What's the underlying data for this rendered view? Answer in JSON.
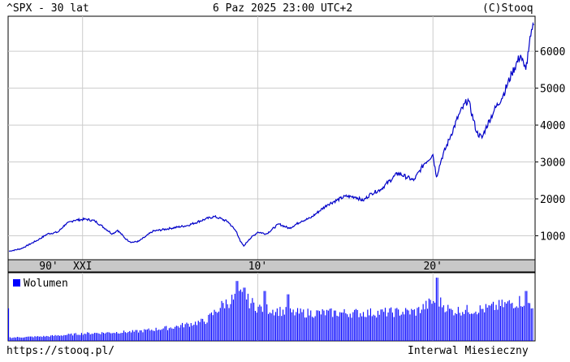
{
  "header": {
    "title": "^SPX - 30 lat",
    "datetime": "6 Paz 2025 23:00 UTC+2",
    "copyright": "(C)Stooq"
  },
  "footer": {
    "url": "https://stooq.pl/",
    "interval": "Interwal Miesieczny"
  },
  "colors": {
    "line": "#0000c8",
    "volume": "#0000ff",
    "grid": "#cccccc",
    "axis_band": "#c8c8c8"
  },
  "chart_data": [
    {
      "type": "line",
      "title": "^SPX - 30 lat",
      "series": [
        {
          "x": [
            1995.8,
            1996.5,
            1997.5,
            1998.0,
            1998.6,
            1999.0,
            1999.5,
            2000.2,
            2000.7,
            2001.0,
            2001.7,
            2002.0,
            2002.5,
            2002.8,
            2003.2,
            2003.6,
            2004.0,
            2005.0,
            2006.0,
            2007.0,
            2007.5,
            2007.8,
            2008.3,
            2008.8,
            2009.0,
            2009.2,
            2009.5,
            2010.0,
            2010.5,
            2011.2,
            2011.8,
            2012.5,
            2013.0,
            2014.0,
            2015.0,
            2015.6,
            2016.0,
            2016.5,
            2017.0,
            2018.0,
            2018.9,
            2019.5,
            2020.0,
            2020.2,
            2020.5,
            2021.0,
            2021.5,
            2022.0,
            2022.5,
            2022.8,
            2023.0,
            2023.5,
            2024.0,
            2024.5,
            2025.0,
            2025.2,
            2025.3,
            2025.5,
            2025.75
          ],
          "values": [
            580,
            650,
            900,
            1050,
            1100,
            1300,
            1420,
            1450,
            1400,
            1300,
            1050,
            1150,
            900,
            820,
            850,
            980,
            1120,
            1200,
            1280,
            1450,
            1520,
            1480,
            1380,
            1100,
            850,
            720,
            900,
            1100,
            1050,
            1320,
            1200,
            1400,
            1480,
            1850,
            2070,
            2050,
            1950,
            2150,
            2250,
            2700,
            2500,
            2950,
            3200,
            2600,
            3100,
            3700,
            4300,
            4700,
            3800,
            3650,
            3900,
            4400,
            4800,
            5400,
            5900,
            5600,
            5500,
            6200,
            6710
          ]
        }
      ],
      "ylim": [
        350,
        6950
      ],
      "y_ticks": [
        1000,
        2000,
        3000,
        4000,
        5000,
        6000
      ],
      "x_labels": [
        {
          "x": 1990,
          "label": "90'"
        },
        {
          "x": 2000,
          "label": "XXI"
        },
        {
          "x": 2010,
          "label": "10'"
        },
        {
          "x": 2020,
          "label": "20'"
        }
      ],
      "x_grid": [
        2000,
        2010,
        2020
      ],
      "xlim": [
        1995.75,
        2025.83
      ],
      "grid": true
    },
    {
      "type": "bar",
      "legend": "Wolumen",
      "legend_position": "top-left",
      "volume_relative": [
        {
          "x": 1995.8,
          "v": 0.05
        },
        {
          "x": 1998.0,
          "v": 0.07
        },
        {
          "x": 2000.0,
          "v": 0.11
        },
        {
          "x": 2003.0,
          "v": 0.14
        },
        {
          "x": 2005.0,
          "v": 0.2
        },
        {
          "x": 2007.0,
          "v": 0.3
        },
        {
          "x": 2008.0,
          "v": 0.55
        },
        {
          "x": 2009.0,
          "v": 0.68
        },
        {
          "x": 2010.0,
          "v": 0.5
        },
        {
          "x": 2012.0,
          "v": 0.42
        },
        {
          "x": 2016.0,
          "v": 0.42
        },
        {
          "x": 2019.0,
          "v": 0.44
        },
        {
          "x": 2020.2,
          "v": 0.62
        },
        {
          "x": 2021.0,
          "v": 0.45
        },
        {
          "x": 2023.0,
          "v": 0.48
        },
        {
          "x": 2025.0,
          "v": 0.6
        },
        {
          "x": 2025.7,
          "v": 0.55
        }
      ],
      "volume_spikes": [
        {
          "x": 2008.8,
          "v": 0.9
        },
        {
          "x": 2009.2,
          "v": 0.8
        },
        {
          "x": 2010.4,
          "v": 0.75
        },
        {
          "x": 2011.7,
          "v": 0.7
        },
        {
          "x": 2020.2,
          "v": 0.95
        },
        {
          "x": 2025.3,
          "v": 0.75
        }
      ]
    }
  ]
}
